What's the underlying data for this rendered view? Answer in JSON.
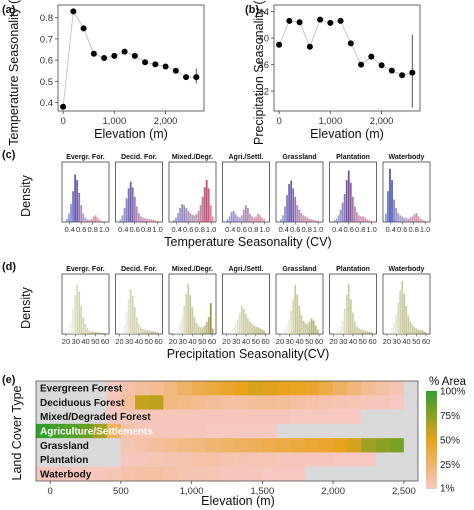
{
  "colors": {
    "blue": "#3b5cc6",
    "red": "#d9415b",
    "olive": "#7d7a10",
    "green": "#2fa02c",
    "orange": "#e8a21b",
    "pink": "#f7c8c4",
    "nodata": "#d9d9d9"
  },
  "panels": {
    "a": {
      "label": "(a)",
      "xlabel": "Elevation (m)",
      "ylabel": "Temperature Seasonality (CV)",
      "xticks": [
        "0",
        "1,000",
        "2,000"
      ],
      "yticks": [
        "0.4",
        "0.5",
        "0.6",
        "0.7",
        "0.8"
      ]
    },
    "b": {
      "label": "(b)",
      "xlabel": "Elevation (m)",
      "ylabel": "Precipitation Seasonality (CV)",
      "xticks": [
        "0",
        "1,000",
        "2,000"
      ],
      "yticks": [
        "32",
        "36",
        "40",
        "44"
      ]
    },
    "c": {
      "label": "(c)",
      "xlabel": "Temperature Seasonality (CV)",
      "ylabel": "Density",
      "xticks": [
        "0.4",
        "0.6",
        "0.8",
        "1.0"
      ]
    },
    "d": {
      "label": "(d)",
      "xlabel": "Precipitation Seasonality(CV)",
      "ylabel": "Density",
      "xticks": [
        "20",
        "30",
        "40",
        "50",
        "60"
      ]
    },
    "e": {
      "label": "(e)",
      "xlabel": "Elevation (m)",
      "ylabel": "Land Cover Type",
      "xticks": [
        "0",
        "500",
        "1,000",
        "1,500",
        "2,000",
        "2,500"
      ],
      "legend_title": "% Area",
      "legend_ticks": [
        "100%",
        "75%",
        "50%",
        "25%",
        "1%"
      ]
    }
  },
  "chart_data": [
    {
      "type": "scatter",
      "id": "a",
      "x": [
        0,
        200,
        400,
        600,
        800,
        1000,
        1200,
        1400,
        1600,
        1800,
        2000,
        2200,
        2400,
        2600
      ],
      "y": [
        0.38,
        0.83,
        0.75,
        0.63,
        0.61,
        0.62,
        0.64,
        0.62,
        0.59,
        0.58,
        0.57,
        0.55,
        0.52,
        0.52
      ],
      "error_at_last": [
        0.49,
        0.56
      ],
      "xlim": [
        -100,
        2750
      ],
      "ylim": [
        0.36,
        0.86
      ]
    },
    {
      "type": "scatter",
      "id": "b",
      "x": [
        0,
        200,
        400,
        600,
        800,
        1000,
        1200,
        1400,
        1600,
        1800,
        2000,
        2200,
        2400,
        2600
      ],
      "y": [
        39,
        42.6,
        42.4,
        38.7,
        42.8,
        42.3,
        42.6,
        39.2,
        36,
        37.2,
        35.9,
        35.1,
        34.4,
        34.8
      ],
      "error_at_last": [
        29.5,
        40.5
      ],
      "xlim": [
        -100,
        2750
      ],
      "ylim": [
        29,
        45
      ]
    },
    {
      "type": "histogram",
      "id": "c",
      "x_domain": [
        0.3,
        1.05
      ],
      "facets": [
        "Evergr. For.",
        "Decid. For.",
        "Mixed./Degr.",
        "Agri./Settl.",
        "Grassland",
        "Plantation",
        "Waterbody"
      ],
      "densities": [
        [
          0,
          0.06,
          0.15,
          0.32,
          0.55,
          0.85,
          0.75,
          0.52,
          0.3,
          0.15,
          0.08,
          0.05,
          0.04,
          0.05,
          0.1,
          0.12,
          0.08,
          0.04,
          0.02,
          0,
          0
        ],
        [
          0,
          0.05,
          0.12,
          0.25,
          0.42,
          0.6,
          0.72,
          0.62,
          0.45,
          0.28,
          0.16,
          0.1,
          0.08,
          0.07,
          0.06,
          0.05,
          0.05,
          0.04,
          0.03,
          0.02,
          0
        ],
        [
          0,
          0.04,
          0.08,
          0.16,
          0.25,
          0.32,
          0.3,
          0.25,
          0.2,
          0.16,
          0.13,
          0.12,
          0.14,
          0.2,
          0.3,
          0.45,
          0.62,
          0.75,
          0.6,
          0.3,
          0.1
        ],
        [
          0,
          0.05,
          0.1,
          0.18,
          0.2,
          0.15,
          0.1,
          0.08,
          0.12,
          0.22,
          0.3,
          0.25,
          0.15,
          0.1,
          0.08,
          0.1,
          0.15,
          0.12,
          0.08,
          0.05,
          0
        ],
        [
          0,
          0.05,
          0.12,
          0.28,
          0.48,
          0.68,
          0.74,
          0.6,
          0.45,
          0.3,
          0.22,
          0.16,
          0.12,
          0.1,
          0.08,
          0.06,
          0.05,
          0.04,
          0.03,
          0.02,
          0
        ],
        [
          0,
          0.03,
          0.06,
          0.12,
          0.22,
          0.35,
          0.5,
          0.75,
          0.92,
          0.7,
          0.45,
          0.28,
          0.18,
          0.12,
          0.1,
          0.1,
          0.08,
          0.05,
          0.03,
          0.02,
          0
        ],
        [
          0.15,
          0.55,
          0.95,
          0.75,
          0.4,
          0.25,
          0.16,
          0.12,
          0.1,
          0.08,
          0.07,
          0.06,
          0.08,
          0.1,
          0.14,
          0.16,
          0.1,
          0.06,
          0.04,
          0.02,
          0
        ]
      ]
    },
    {
      "type": "histogram",
      "id": "d",
      "x_domain": [
        18,
        62
      ],
      "facets": [
        "Evergr. For.",
        "Decid. For.",
        "Mixed./Degr.",
        "Agri./Settl.",
        "Grassland",
        "Plantation",
        "Waterbody"
      ],
      "densities": [
        [
          0,
          0.03,
          0.08,
          0.2,
          0.45,
          0.7,
          0.88,
          0.75,
          0.5,
          0.3,
          0.18,
          0.1,
          0.06,
          0.05,
          0.04,
          0.04,
          0.03,
          0.03,
          0.02,
          0.02,
          0
        ],
        [
          0,
          0.03,
          0.07,
          0.16,
          0.38,
          0.62,
          0.8,
          0.68,
          0.48,
          0.3,
          0.18,
          0.12,
          0.09,
          0.08,
          0.07,
          0.06,
          0.05,
          0.05,
          0.04,
          0.03,
          0
        ],
        [
          0,
          0.02,
          0.05,
          0.1,
          0.2,
          0.32,
          0.5,
          0.72,
          0.9,
          0.7,
          0.48,
          0.3,
          0.2,
          0.15,
          0.12,
          0.12,
          0.15,
          0.22,
          0.3,
          0.55,
          0.1
        ],
        [
          0,
          0.02,
          0.04,
          0.08,
          0.12,
          0.18,
          0.26,
          0.38,
          0.5,
          0.45,
          0.36,
          0.28,
          0.22,
          0.18,
          0.15,
          0.13,
          0.12,
          0.1,
          0.08,
          0.06,
          0
        ],
        [
          0,
          0.03,
          0.06,
          0.1,
          0.16,
          0.26,
          0.42,
          0.62,
          0.88,
          0.7,
          0.5,
          0.34,
          0.24,
          0.2,
          0.18,
          0.22,
          0.28,
          0.24,
          0.15,
          0.08,
          0
        ],
        [
          0,
          0.02,
          0.04,
          0.08,
          0.14,
          0.24,
          0.45,
          0.7,
          0.9,
          0.62,
          0.38,
          0.22,
          0.14,
          0.1,
          0.08,
          0.07,
          0.06,
          0.05,
          0.04,
          0.03,
          0
        ],
        [
          0,
          0.03,
          0.06,
          0.12,
          0.22,
          0.36,
          0.56,
          0.78,
          0.95,
          0.72,
          0.5,
          0.33,
          0.22,
          0.16,
          0.12,
          0.1,
          0.08,
          0.07,
          0.06,
          0.04,
          0
        ]
      ]
    },
    {
      "type": "heatmap",
      "id": "e",
      "rows": [
        "Evergreen Forest",
        "Deciduous Forest",
        "Mixed/Degraded Forest",
        "Agriculture/Settlements",
        "Grassland",
        "Plantation",
        "Waterbody"
      ],
      "x_start": -100,
      "bin_width": 100,
      "xlim": [
        -100,
        2600
      ],
      "values": [
        [
          0,
          0,
          0,
          0,
          0,
          1,
          8,
          12,
          15,
          20,
          28,
          35,
          40,
          45,
          50,
          55,
          52,
          50,
          48,
          45,
          38,
          30,
          22,
          15,
          10,
          5,
          0
        ],
        [
          0,
          0,
          0,
          0,
          0,
          2,
          12,
          60,
          62,
          20,
          18,
          15,
          12,
          10,
          10,
          12,
          14,
          12,
          10,
          8,
          6,
          5,
          4,
          3,
          2,
          1,
          0
        ],
        [
          0,
          0,
          0,
          0,
          0,
          1,
          3,
          2,
          2,
          3,
          3,
          3,
          3,
          2,
          2,
          2,
          2,
          2,
          1,
          1,
          1,
          1,
          1,
          0,
          0,
          0,
          0
        ],
        [
          100,
          95,
          90,
          85,
          70,
          30,
          8,
          5,
          3,
          2,
          2,
          2,
          1,
          1,
          1,
          1,
          1,
          0,
          0,
          0,
          0,
          0,
          0,
          0,
          0,
          0,
          0
        ],
        [
          0,
          0,
          0,
          0,
          0,
          0,
          5,
          8,
          12,
          15,
          18,
          20,
          25,
          28,
          30,
          32,
          35,
          38,
          40,
          42,
          45,
          50,
          55,
          70,
          75,
          80,
          0
        ],
        [
          0,
          0,
          0,
          0,
          0,
          0,
          2,
          3,
          4,
          5,
          6,
          8,
          8,
          6,
          5,
          4,
          4,
          3,
          3,
          2,
          2,
          1,
          1,
          1,
          0,
          0,
          0
        ],
        [
          2,
          2,
          2,
          2,
          3,
          4,
          8,
          10,
          10,
          8,
          6,
          5,
          4,
          3,
          2,
          2,
          1,
          1,
          1,
          0,
          0,
          0,
          0,
          0,
          0,
          0,
          0
        ]
      ]
    }
  ]
}
